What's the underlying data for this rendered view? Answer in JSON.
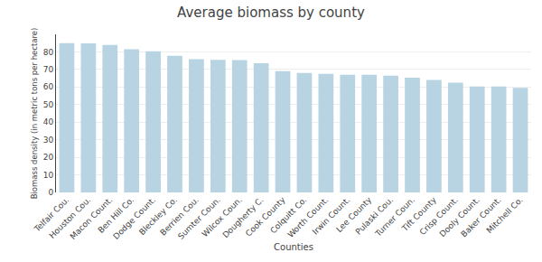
{
  "chart_data": {
    "type": "bar",
    "title": "Average biomass by county",
    "xlabel": "Counties",
    "ylabel": "Biomass density (in metric tons per hectare)",
    "categories": [
      "Telfair Cou.",
      "Houston Cou.",
      "Macon Count.",
      "Ben Hill Co.",
      "Dodge Count.",
      "Bleckley Co.",
      "Berrien Cou.",
      "Sumter Coun.",
      "Wilcox Coun.",
      "Dougherty C.",
      "Cook County",
      "Colquitt Co.",
      "Worth Count.",
      "Irwin Count.",
      "Lee County",
      "Pulaski Cou.",
      "Turner Coun.",
      "Tift County",
      "Crisp Count.",
      "Dooly Count.",
      "Baker Count.",
      "Mitchell Co."
    ],
    "values": [
      85.0,
      84.8,
      84.0,
      81.5,
      80.3,
      77.8,
      75.8,
      75.5,
      75.3,
      73.5,
      69.0,
      68.0,
      67.5,
      67.0,
      67.0,
      66.5,
      65.3,
      64.0,
      62.5,
      60.3,
      60.3,
      59.5
    ],
    "color": "#b8d4e3",
    "ylim": [
      0,
      90
    ],
    "yticks": [
      0,
      10,
      20,
      30,
      40,
      50,
      60,
      70,
      80
    ],
    "grid": true
  }
}
